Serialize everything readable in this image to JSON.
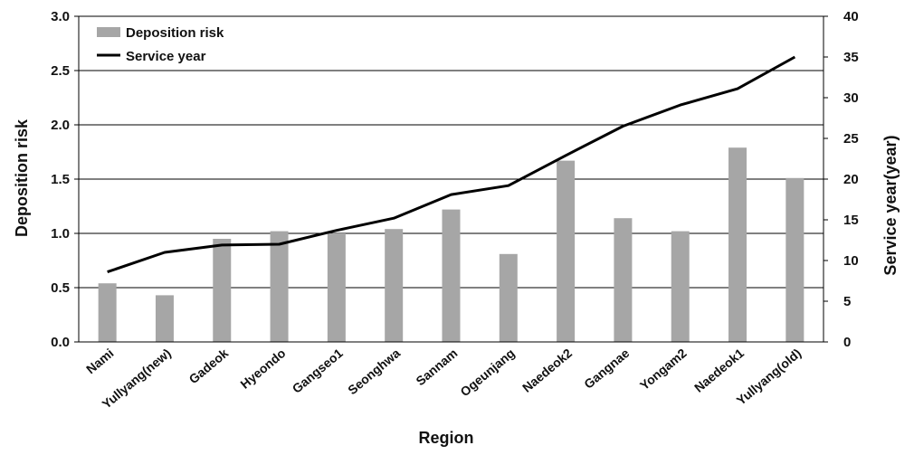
{
  "chart_data": {
    "type": "bar",
    "categories": [
      "Nami",
      "Yullyang(new)",
      "Gadeok",
      "Hyeondo",
      "Gangseo1",
      "Seonghwa",
      "Sannam",
      "Ogeunjang",
      "Naedeok2",
      "Gangnae",
      "Yongam2",
      "Naedeok1",
      "Yullyang(old)"
    ],
    "xlabel": "Region",
    "ylabel": "Deposition risk",
    "y2label": "Service year(year)",
    "ylim": [
      0,
      3.0
    ],
    "y2lim": [
      0,
      40
    ],
    "yticks": [
      "0.0",
      "0.5",
      "1.0",
      "1.5",
      "2.0",
      "2.5",
      "3.0"
    ],
    "y2ticks": [
      "0",
      "5",
      "10",
      "15",
      "20",
      "25",
      "30",
      "35",
      "40"
    ],
    "grid": true,
    "legend_position": "top-left",
    "colors": {
      "bar": "#a6a6a6",
      "line": "#000000",
      "grid": "#000000"
    },
    "series": [
      {
        "name": "Deposition risk",
        "type": "bar",
        "axis": "left",
        "values": [
          0.54,
          0.43,
          0.95,
          1.02,
          1.0,
          1.04,
          1.22,
          0.81,
          1.67,
          1.14,
          1.02,
          1.79,
          1.51
        ]
      },
      {
        "name": "Service year",
        "type": "line",
        "axis": "right",
        "values": [
          8.6,
          11.0,
          11.9,
          12.0,
          13.7,
          15.2,
          18.1,
          19.2,
          22.9,
          26.5,
          29.1,
          31.1,
          35.0
        ]
      }
    ]
  }
}
